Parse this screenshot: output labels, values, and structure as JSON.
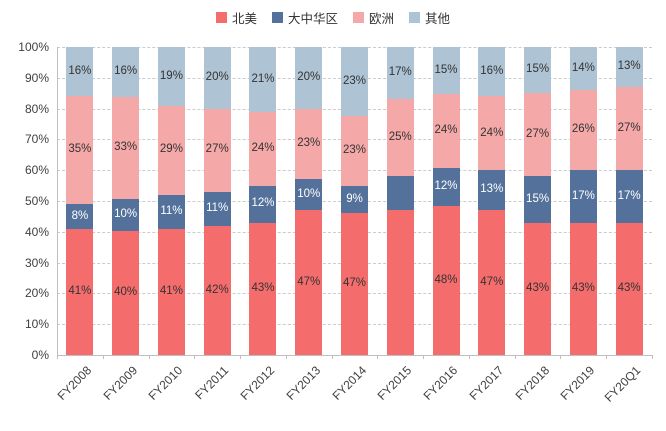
{
  "chart_data": {
    "type": "bar",
    "stacked": true,
    "percent_stacked": true,
    "title": "",
    "legend_position": "top",
    "grid": "dashed-horizontal",
    "categories": [
      "FY2008",
      "FY2009",
      "FY2010",
      "FY2011",
      "FY2012",
      "FY2013",
      "FY2014",
      "FY2015",
      "FY2016",
      "FY2017",
      "FY2018",
      "FY2019",
      "FY20Q1"
    ],
    "series": [
      {
        "key": "north-america",
        "name": "北美",
        "color": "#F56C6C",
        "label_color": "#333333",
        "values": [
          41,
          40,
          41,
          42,
          43,
          47,
          47,
          47,
          48,
          47,
          43,
          43,
          43
        ],
        "labels": [
          "41%",
          "40%",
          "41%",
          "42%",
          "43%",
          "47%",
          "47%",
          "",
          "48%",
          "47%",
          "43%",
          "43%",
          "43%"
        ]
      },
      {
        "key": "greater-china",
        "name": "大中华区",
        "color": "#53719A",
        "label_color": "#ffffff",
        "values": [
          8,
          10,
          11,
          11,
          12,
          10,
          9,
          11,
          12,
          13,
          15,
          17,
          17
        ],
        "labels": [
          "8%",
          "10%",
          "11%",
          "11%",
          "12%",
          "10%",
          "9%",
          "",
          "12%",
          "13%",
          "15%",
          "17%",
          "17%"
        ]
      },
      {
        "key": "europe",
        "name": "欧洲",
        "color": "#F5A8A8",
        "label_color": "#333333",
        "values": [
          35,
          33,
          29,
          27,
          24,
          23,
          23,
          25,
          24,
          24,
          27,
          26,
          27
        ],
        "labels": [
          "35%",
          "33%",
          "29%",
          "27%",
          "24%",
          "23%",
          "23%",
          "25%",
          "24%",
          "24%",
          "27%",
          "26%",
          "27%"
        ]
      },
      {
        "key": "others",
        "name": "其他",
        "color": "#AEC3D4",
        "label_color": "#333333",
        "values": [
          16,
          16,
          19,
          20,
          21,
          20,
          23,
          17,
          15,
          16,
          15,
          14,
          13
        ],
        "labels": [
          "16%",
          "16%",
          "19%",
          "20%",
          "21%",
          "20%",
          "23%",
          "17%",
          "15%",
          "16%",
          "15%",
          "14%",
          "13%"
        ]
      }
    ],
    "y_axis": {
      "min": 0,
      "max": 100,
      "ticks": [
        "0%",
        "10%",
        "20%",
        "30%",
        "40%",
        "50%",
        "60%",
        "70%",
        "80%",
        "90%",
        "100%"
      ]
    }
  }
}
